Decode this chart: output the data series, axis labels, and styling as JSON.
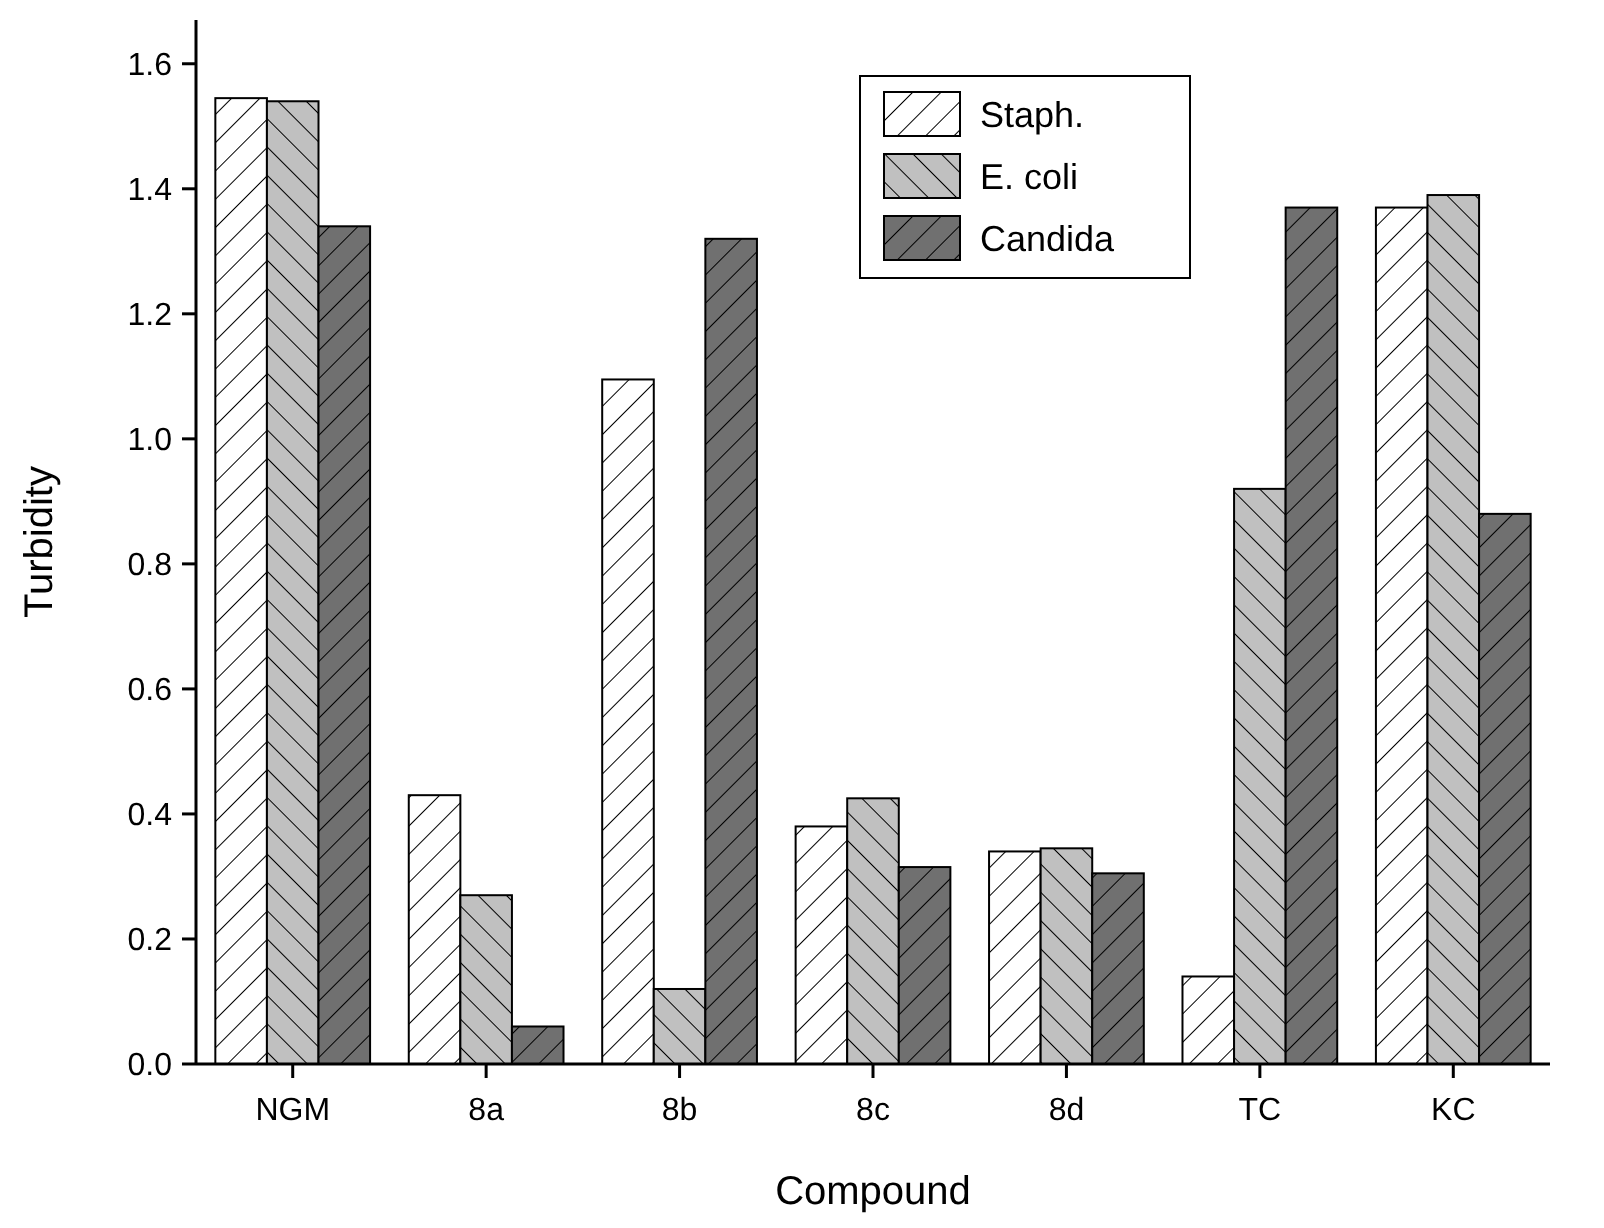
{
  "chart_data": {
    "type": "bar",
    "xlabel": "Compound",
    "ylabel": "Turbidity",
    "categories": [
      "NGM",
      "8a",
      "8b",
      "8c",
      "8d",
      "TC",
      "KC"
    ],
    "series": [
      {
        "name": "Staph.",
        "color": "#ffffff",
        "values": [
          1.545,
          0.43,
          1.095,
          0.38,
          0.34,
          0.14,
          1.37
        ]
      },
      {
        "name": "E. coli",
        "color": "#c0c0c0",
        "values": [
          1.54,
          0.27,
          0.12,
          0.425,
          0.345,
          0.92,
          1.39
        ]
      },
      {
        "name": "Candida",
        "color": "#707070",
        "values": [
          1.34,
          0.06,
          1.32,
          0.315,
          0.305,
          1.37,
          0.88
        ]
      }
    ],
    "ylim": [
      0,
      1.67
    ],
    "yticks": [
      {
        "value": 0,
        "label": "0.0"
      },
      {
        "value": 0.2,
        "label": "0.2"
      },
      {
        "value": 0.4,
        "label": "0.4"
      },
      {
        "value": 0.6,
        "label": "0.6"
      },
      {
        "value": 0.8,
        "label": "0.8"
      },
      {
        "value": 1,
        "label": "1.0"
      },
      {
        "value": 1.2,
        "label": "1.2"
      },
      {
        "value": 1.4,
        "label": "1.4"
      },
      {
        "value": 1.6,
        "label": "1.6"
      }
    ],
    "legend": "top right",
    "grid": false
  }
}
